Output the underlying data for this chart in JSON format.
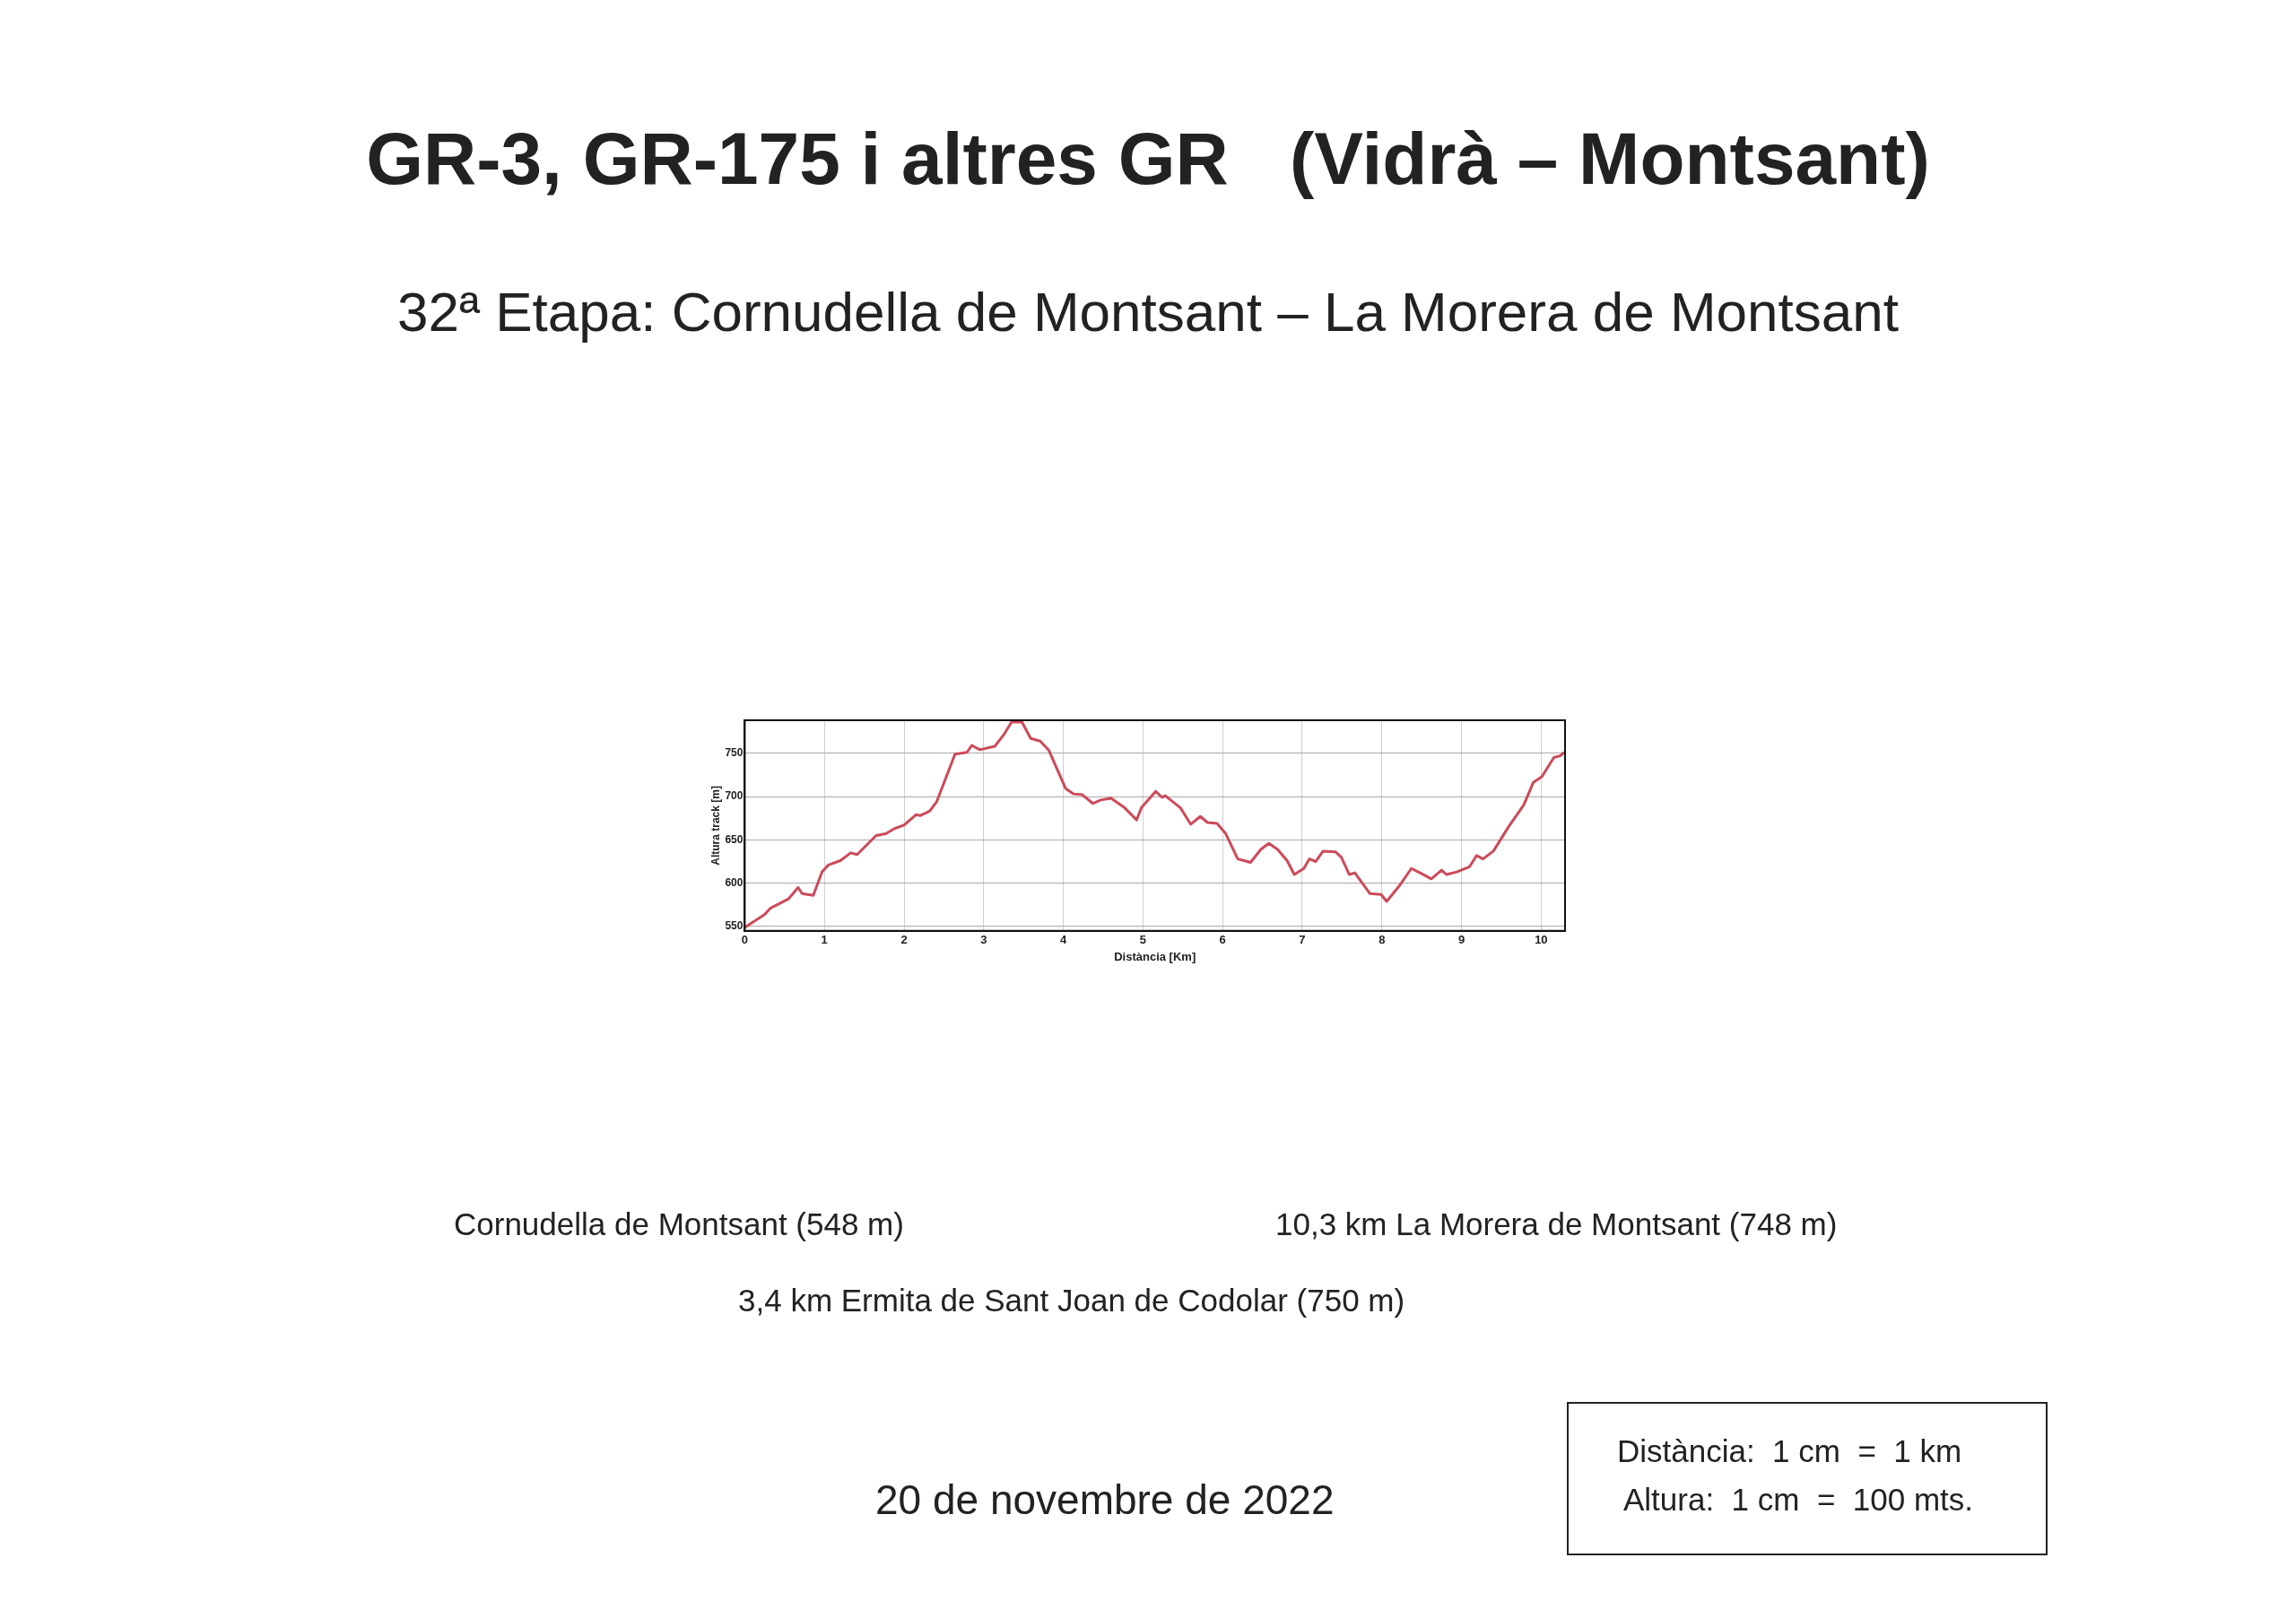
{
  "chart_data": {
    "type": "line",
    "title": "GR-3, GR-175 i altres GR   (Vidrà – Montsant)",
    "subtitle": "32ª Etapa: Cornudella de Montsant – La Morera de Montsant",
    "xlabel": "Distància [Km]",
    "ylabel": "Altura track [m]",
    "x": [
      0,
      0.25,
      0.32,
      0.55,
      0.67,
      0.72,
      0.86,
      0.97,
      1.05,
      1.2,
      1.33,
      1.41,
      1.65,
      1.77,
      1.88,
      2.0,
      2.15,
      2.2,
      2.32,
      2.41,
      2.64,
      2.79,
      2.85,
      2.95,
      3.14,
      3.25,
      3.35,
      3.48,
      3.59,
      3.71,
      3.82,
      4.03,
      4.13,
      4.24,
      4.37,
      4.47,
      4.6,
      4.77,
      4.92,
      4.98,
      5.16,
      5.24,
      5.28,
      5.47,
      5.6,
      5.72,
      5.81,
      5.93,
      6.04,
      6.19,
      6.27,
      6.35,
      6.48,
      6.58,
      6.69,
      6.81,
      6.9,
      7.02,
      7.09,
      7.17,
      7.26,
      7.42,
      7.49,
      7.59,
      7.66,
      7.85,
      7.99,
      8.06,
      8.22,
      8.37,
      8.48,
      8.62,
      8.75,
      8.81,
      8.94,
      9.1,
      9.19,
      9.27,
      9.4,
      9.59,
      9.78,
      9.9,
      10.01,
      10.16,
      10.24,
      10.29
    ],
    "series": [
      {
        "color": "#cc4a5a",
        "values": [
          549,
          564,
          571,
          582,
          595,
          588,
          586,
          613,
          621,
          626,
          635,
          633,
          655,
          657,
          663,
          667,
          679,
          678,
          683,
          694,
          749,
          751,
          759,
          754,
          758,
          771,
          786,
          786,
          767,
          764,
          753,
          709,
          703,
          702,
          692,
          696,
          698,
          687,
          673,
          687,
          706,
          699,
          701,
          687,
          668,
          677,
          670,
          669,
          657,
          628,
          626,
          624,
          639,
          646,
          639,
          626,
          610,
          617,
          628,
          625,
          637,
          636,
          630,
          610,
          612,
          588,
          587,
          579,
          597,
          617,
          612,
          605,
          615,
          610,
          613,
          619,
          632,
          628,
          637,
          665,
          690,
          716,
          723,
          745,
          747,
          751
        ]
      }
    ],
    "xlim": [
      0,
      10.3
    ],
    "xticks": [
      0,
      1,
      2,
      3,
      4,
      5,
      6,
      7,
      8,
      9,
      10
    ],
    "ylim": [
      545,
      788
    ],
    "yticks": [
      550,
      600,
      650,
      700,
      750
    ],
    "grid": true,
    "legend": false,
    "marker": "none",
    "line_style": "solid",
    "annotations": [
      "Cornudella de Montsant (548 m)",
      "10,3 km La Morera de Montsant (748 m)",
      "3,4 km Ermita de Sant Joan de Codolar (750 m)",
      "20 de novembre de 2022",
      "Distància:  1 cm  =  1 km",
      "Altura:  1 cm  =  100 mts."
    ]
  }
}
